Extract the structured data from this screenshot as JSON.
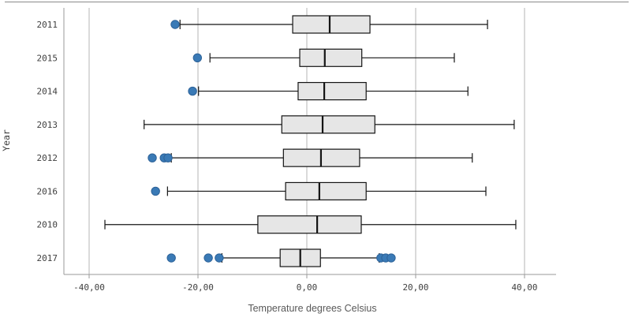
{
  "colors": {
    "outlier_fill": "#3a7ab6",
    "outlier_stroke": "#2d6298",
    "box_fill": "#e6e6e6",
    "box_stroke": "#141414",
    "whisker_stroke": "#141414",
    "gridline": "#b5b5b5",
    "axis_line": "#9a9a9a",
    "top_border": "#8a8a8a",
    "tick_text": "#404040",
    "axis_title_text": "#595959"
  },
  "chart_data": {
    "type": "boxplot",
    "orientation": "horizontal",
    "title": "",
    "xlabel": "Temperature degrees Celsius",
    "ylabel": "Year",
    "x_ticks": [
      {
        "label": "-40,00",
        "value": -40
      },
      {
        "label": "-20,00",
        "value": -20
      },
      {
        "label": "0,00",
        "value": 0
      },
      {
        "label": "20,00",
        "value": 20
      },
      {
        "label": "40,00",
        "value": 40
      }
    ],
    "xlim": [
      -44.6,
      45.8
    ],
    "grid": true,
    "categories": [
      "2011",
      "2015",
      "2014",
      "2013",
      "2012",
      "2016",
      "2010",
      "2017"
    ],
    "series": [
      {
        "category": "2011",
        "whisker_low": -23.3,
        "q1": -2.6,
        "median": 4.2,
        "q3": 11.6,
        "whisker_high": 33.2,
        "outliers": [
          -24.2
        ]
      },
      {
        "category": "2015",
        "whisker_low": -17.8,
        "q1": -1.3,
        "median": 3.3,
        "q3": 10.1,
        "whisker_high": 27.1,
        "outliers": [
          -20.1
        ]
      },
      {
        "category": "2014",
        "whisker_low": -19.9,
        "q1": -1.6,
        "median": 3.2,
        "q3": 10.9,
        "whisker_high": 29.6,
        "outliers": [
          -21.0
        ]
      },
      {
        "category": "2013",
        "whisker_low": -29.9,
        "q1": -4.6,
        "median": 2.9,
        "q3": 12.5,
        "whisker_high": 38.1,
        "outliers": []
      },
      {
        "category": "2012",
        "whisker_low": -24.9,
        "q1": -4.3,
        "median": 2.6,
        "q3": 9.7,
        "whisker_high": 30.4,
        "outliers": [
          -28.4,
          -26.2,
          -25.5
        ]
      },
      {
        "category": "2016",
        "whisker_low": -25.6,
        "q1": -3.9,
        "median": 2.3,
        "q3": 10.9,
        "whisker_high": 32.9,
        "outliers": [
          -27.8
        ]
      },
      {
        "category": "2010",
        "whisker_low": -37.1,
        "q1": -9.0,
        "median": 1.9,
        "q3": 10.0,
        "whisker_high": 38.4,
        "outliers": []
      },
      {
        "category": "2017",
        "whisker_low": -15.6,
        "q1": -4.9,
        "median": -1.2,
        "q3": 2.5,
        "whisker_high": 13.3,
        "outliers": [
          -24.9,
          -18.1,
          -16.1,
          13.6,
          14.5,
          15.5
        ]
      }
    ]
  }
}
